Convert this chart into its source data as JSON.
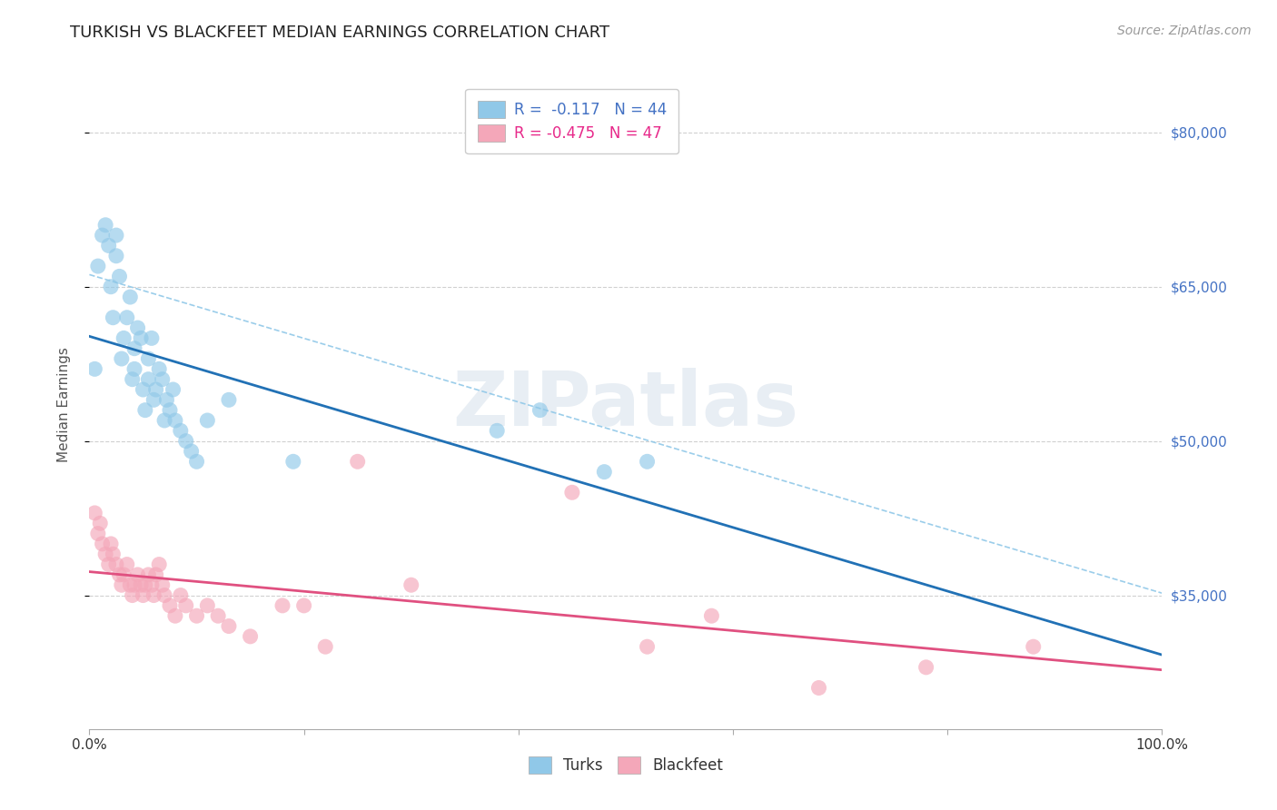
{
  "title": "TURKISH VS BLACKFEET MEDIAN EARNINGS CORRELATION CHART",
  "source": "Source: ZipAtlas.com",
  "ylabel": "Median Earnings",
  "xlim": [
    0.0,
    1.0
  ],
  "ylim": [
    22000,
    85000
  ],
  "yticks": [
    35000,
    50000,
    65000,
    80000
  ],
  "ytick_labels": [
    "$35,000",
    "$50,000",
    "$65,000",
    "$80,000"
  ],
  "turkish_R": "-0.117",
  "turkish_N": "44",
  "blackfeet_R": "-0.475",
  "blackfeet_N": "47",
  "turkish_color": "#90c8e8",
  "blackfeet_color": "#f4a7b9",
  "turkish_line_color": "#2171b5",
  "blackfeet_line_color": "#e05080",
  "turkish_dashed_color": "#90c8e8",
  "background_color": "#ffffff",
  "grid_color": "#d0d0d0",
  "title_fontsize": 13,
  "axis_label_fontsize": 11,
  "tick_fontsize": 11,
  "legend_fontsize": 12,
  "source_fontsize": 10,
  "right_yaxis_color": "#4472c4",
  "turkish_scatter_x": [
    0.005,
    0.008,
    0.012,
    0.015,
    0.018,
    0.02,
    0.022,
    0.025,
    0.025,
    0.028,
    0.03,
    0.032,
    0.035,
    0.038,
    0.04,
    0.042,
    0.042,
    0.045,
    0.048,
    0.05,
    0.052,
    0.055,
    0.055,
    0.058,
    0.06,
    0.062,
    0.065,
    0.068,
    0.07,
    0.072,
    0.075,
    0.078,
    0.08,
    0.085,
    0.09,
    0.095,
    0.1,
    0.11,
    0.13,
    0.19,
    0.38,
    0.42,
    0.48,
    0.52
  ],
  "turkish_scatter_y": [
    57000,
    67000,
    70000,
    71000,
    69000,
    65000,
    62000,
    68000,
    70000,
    66000,
    58000,
    60000,
    62000,
    64000,
    56000,
    57000,
    59000,
    61000,
    60000,
    55000,
    53000,
    56000,
    58000,
    60000,
    54000,
    55000,
    57000,
    56000,
    52000,
    54000,
    53000,
    55000,
    52000,
    51000,
    50000,
    49000,
    48000,
    52000,
    54000,
    48000,
    51000,
    53000,
    47000,
    48000
  ],
  "blackfeet_scatter_x": [
    0.005,
    0.008,
    0.01,
    0.012,
    0.015,
    0.018,
    0.02,
    0.022,
    0.025,
    0.028,
    0.03,
    0.032,
    0.035,
    0.038,
    0.04,
    0.042,
    0.045,
    0.048,
    0.05,
    0.052,
    0.055,
    0.058,
    0.06,
    0.062,
    0.065,
    0.068,
    0.07,
    0.075,
    0.08,
    0.085,
    0.09,
    0.1,
    0.11,
    0.12,
    0.13,
    0.15,
    0.18,
    0.2,
    0.22,
    0.25,
    0.3,
    0.45,
    0.52,
    0.58,
    0.68,
    0.78,
    0.88
  ],
  "blackfeet_scatter_y": [
    43000,
    41000,
    42000,
    40000,
    39000,
    38000,
    40000,
    39000,
    38000,
    37000,
    36000,
    37000,
    38000,
    36000,
    35000,
    36000,
    37000,
    36000,
    35000,
    36000,
    37000,
    36000,
    35000,
    37000,
    38000,
    36000,
    35000,
    34000,
    33000,
    35000,
    34000,
    33000,
    34000,
    33000,
    32000,
    31000,
    34000,
    34000,
    30000,
    48000,
    36000,
    45000,
    30000,
    33000,
    26000,
    28000,
    30000
  ]
}
